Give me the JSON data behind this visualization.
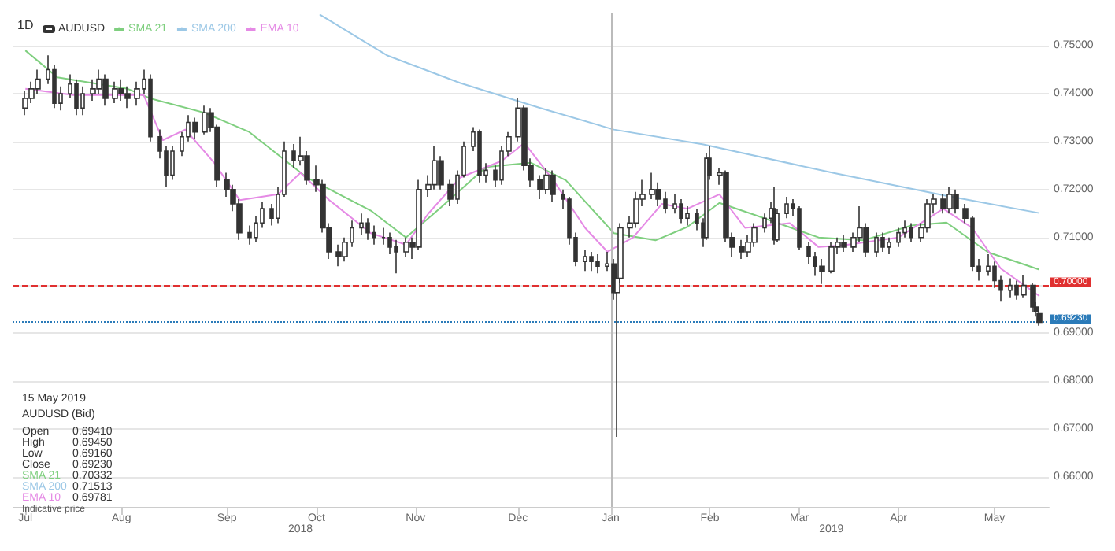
{
  "chart_data": {
    "type": "candlestick",
    "legend": "top left",
    "grid": "y",
    "ylim": [
      0.6538,
      0.7569
    ],
    "yticks": [
      {
        "value": 0.66,
        "label": "0.66000"
      },
      {
        "value": 0.67,
        "label": "0.67000"
      },
      {
        "value": 0.68,
        "label": "0.68000"
      },
      {
        "value": 0.69,
        "label": "0.69000"
      },
      {
        "value": 0.7,
        "label": null
      },
      {
        "value": 0.71,
        "label": "0.71000"
      },
      {
        "value": 0.72,
        "label": "0.72000"
      },
      {
        "value": 0.73,
        "label": "0.73000"
      },
      {
        "value": 0.74,
        "label": "0.74000"
      },
      {
        "value": 0.75,
        "label": "0.75000"
      }
    ],
    "xlim": [
      "2018-06-28",
      "2019-05-18"
    ],
    "xticks": [
      {
        "value": "2018-07-02",
        "label": "Jul"
      },
      {
        "value": "2018-08-01",
        "label": "Aug"
      },
      {
        "value": "2018-09-03",
        "label": "Sep"
      },
      {
        "value": "2018-10-01",
        "label": "Oct"
      },
      {
        "value": "2018-11-01",
        "label": "Nov"
      },
      {
        "value": "2018-12-03",
        "label": "Dec"
      },
      {
        "value": "2019-01-01",
        "label": "Jan"
      },
      {
        "value": "2019-02-01",
        "label": "Feb"
      },
      {
        "value": "2019-03-01",
        "label": "Mar"
      },
      {
        "value": "2019-04-01",
        "label": "Apr"
      },
      {
        "value": "2019-05-01",
        "label": "May"
      }
    ],
    "x2lim": [
      "2018-06-28",
      "2019-05-18"
    ],
    "x2ticks": [
      {
        "value": "2018-09-26",
        "label": "2018"
      },
      {
        "value": "2019-03-11",
        "label": "2019"
      }
    ],
    "ref_lines": [
      {
        "axis": "y",
        "value": 0.7,
        "label": "0.70000",
        "color": "#e03030",
        "line_style": "dashed"
      },
      {
        "axis": "y",
        "value": 0.6923,
        "label": "0.69230",
        "color": "#2b7bb9",
        "line_style": "dotted"
      },
      {
        "axis": "x",
        "value": "2019-01-01",
        "label": null,
        "color": "#bbbbbb",
        "line_style": "solid"
      }
    ],
    "annotations": [
      "1D",
      "15 May 2019",
      "AUDUSD (Bid)",
      "Open",
      "0.69410",
      "High",
      "0.69450",
      "Low",
      "0.69160",
      "Close",
      "0.69230",
      "SMA 21",
      "0.70332",
      "SMA 200",
      "0.71513",
      "EMA 10",
      "0.69781",
      "Indicative price"
    ],
    "series": [
      {
        "type": "candlestick",
        "name": "AUDUSD",
        "color": "#333333",
        "x": [
          "2018-07-02",
          "2018-07-04",
          "2018-07-06",
          "2018-07-09",
          "2018-07-11",
          "2018-07-13",
          "2018-07-16",
          "2018-07-18",
          "2018-07-20",
          "2018-07-23",
          "2018-07-25",
          "2018-07-27",
          "2018-07-30",
          "2018-08-01",
          "2018-08-03",
          "2018-08-06",
          "2018-08-08",
          "2018-08-10",
          "2018-08-13",
          "2018-08-15",
          "2018-08-17",
          "2018-08-20",
          "2018-08-22",
          "2018-08-24",
          "2018-08-27",
          "2018-08-29",
          "2018-08-31",
          "2018-09-03",
          "2018-09-05",
          "2018-09-07",
          "2018-09-10",
          "2018-09-12",
          "2018-09-14",
          "2018-09-17",
          "2018-09-19",
          "2018-09-21",
          "2018-09-24",
          "2018-09-26",
          "2018-09-28",
          "2018-10-01",
          "2018-10-03",
          "2018-10-05",
          "2018-10-08",
          "2018-10-10",
          "2018-10-12",
          "2018-10-15",
          "2018-10-17",
          "2018-10-19",
          "2018-10-22",
          "2018-10-24",
          "2018-10-26",
          "2018-10-29",
          "2018-10-31",
          "2018-11-02",
          "2018-11-05",
          "2018-11-07",
          "2018-11-09",
          "2018-11-12",
          "2018-11-14",
          "2018-11-16",
          "2018-11-19",
          "2018-11-21",
          "2018-11-23",
          "2018-11-26",
          "2018-11-28",
          "2018-11-30",
          "2018-12-03",
          "2018-12-05",
          "2018-12-07",
          "2018-12-10",
          "2018-12-12",
          "2018-12-14",
          "2018-12-17",
          "2018-12-19",
          "2018-12-21",
          "2018-12-24",
          "2018-12-26",
          "2018-12-28",
          "2018-12-31",
          "2019-01-02",
          "2019-01-03",
          "2019-01-04",
          "2019-01-07",
          "2019-01-09",
          "2019-01-11",
          "2019-01-14",
          "2019-01-16",
          "2019-01-18",
          "2019-01-21",
          "2019-01-23",
          "2019-01-25",
          "2019-01-28",
          "2019-01-30",
          "2019-01-31",
          "2019-02-01",
          "2019-02-04",
          "2019-02-06",
          "2019-02-08",
          "2019-02-11",
          "2019-02-13",
          "2019-02-15",
          "2019-02-18",
          "2019-02-20",
          "2019-02-21",
          "2019-02-22",
          "2019-02-25",
          "2019-02-27",
          "2019-03-01",
          "2019-03-04",
          "2019-03-06",
          "2019-03-08",
          "2019-03-11",
          "2019-03-13",
          "2019-03-15",
          "2019-03-18",
          "2019-03-20",
          "2019-03-22",
          "2019-03-25",
          "2019-03-27",
          "2019-03-29",
          "2019-04-01",
          "2019-04-03",
          "2019-04-05",
          "2019-04-08",
          "2019-04-10",
          "2019-04-12",
          "2019-04-15",
          "2019-04-17",
          "2019-04-19",
          "2019-04-22",
          "2019-04-24",
          "2019-04-26",
          "2019-04-29",
          "2019-05-01",
          "2019-05-03",
          "2019-05-06",
          "2019-05-08",
          "2019-05-10",
          "2019-05-13",
          "2019-05-14",
          "2019-05-15"
        ],
        "ohlc": [
          [
            0.737,
            0.7405,
            0.7355,
            0.739
          ],
          [
            0.739,
            0.7425,
            0.738,
            0.741
          ],
          [
            0.741,
            0.745,
            0.74,
            0.743
          ],
          [
            0.743,
            0.748,
            0.742,
            0.745
          ],
          [
            0.745,
            0.746,
            0.737,
            0.738
          ],
          [
            0.738,
            0.7415,
            0.7365,
            0.74
          ],
          [
            0.74,
            0.744,
            0.739,
            0.742
          ],
          [
            0.742,
            0.743,
            0.7355,
            0.737
          ],
          [
            0.737,
            0.7415,
            0.7355,
            0.74
          ],
          [
            0.74,
            0.743,
            0.7385,
            0.741
          ],
          [
            0.741,
            0.745,
            0.74,
            0.743
          ],
          [
            0.743,
            0.744,
            0.7375,
            0.739
          ],
          [
            0.739,
            0.7425,
            0.738,
            0.741
          ],
          [
            0.741,
            0.743,
            0.7385,
            0.74
          ],
          [
            0.74,
            0.7415,
            0.737,
            0.739
          ],
          [
            0.739,
            0.7425,
            0.7375,
            0.741
          ],
          [
            0.741,
            0.745,
            0.74,
            0.743
          ],
          [
            0.743,
            0.744,
            0.73,
            0.731
          ],
          [
            0.731,
            0.7325,
            0.7265,
            0.728
          ],
          [
            0.728,
            0.729,
            0.7205,
            0.723
          ],
          [
            0.723,
            0.729,
            0.722,
            0.728
          ],
          [
            0.728,
            0.732,
            0.727,
            0.731
          ],
          [
            0.731,
            0.7355,
            0.73,
            0.734
          ],
          [
            0.734,
            0.735,
            0.7305,
            0.732
          ],
          [
            0.732,
            0.7375,
            0.7315,
            0.736
          ],
          [
            0.736,
            0.737,
            0.732,
            0.733
          ],
          [
            0.733,
            0.7335,
            0.7205,
            0.722
          ],
          [
            0.722,
            0.7235,
            0.7185,
            0.72
          ],
          [
            0.72,
            0.721,
            0.7155,
            0.717
          ],
          [
            0.717,
            0.718,
            0.7095,
            0.711
          ],
          [
            0.711,
            0.7125,
            0.7085,
            0.71
          ],
          [
            0.71,
            0.7145,
            0.709,
            0.713
          ],
          [
            0.713,
            0.7175,
            0.712,
            0.716
          ],
          [
            0.716,
            0.717,
            0.7125,
            0.714
          ],
          [
            0.714,
            0.7205,
            0.713,
            0.719
          ],
          [
            0.719,
            0.73,
            0.7185,
            0.728
          ],
          [
            0.728,
            0.7295,
            0.7245,
            0.726
          ],
          [
            0.726,
            0.731,
            0.725,
            0.727
          ],
          [
            0.727,
            0.728,
            0.721,
            0.722
          ],
          [
            0.722,
            0.725,
            0.7195,
            0.721
          ],
          [
            0.721,
            0.722,
            0.711,
            0.712
          ],
          [
            0.712,
            0.713,
            0.7055,
            0.707
          ],
          [
            0.707,
            0.7085,
            0.704,
            0.706
          ],
          [
            0.706,
            0.71,
            0.705,
            0.709
          ],
          [
            0.709,
            0.7135,
            0.708,
            0.712
          ],
          [
            0.712,
            0.715,
            0.7105,
            0.713
          ],
          [
            0.713,
            0.714,
            0.7095,
            0.711
          ],
          [
            0.711,
            0.7125,
            0.7085,
            0.71
          ],
          [
            0.71,
            0.712,
            0.7085,
            0.71
          ],
          [
            0.71,
            0.711,
            0.7065,
            0.708
          ],
          [
            0.708,
            0.7095,
            0.7025,
            0.707
          ],
          [
            0.707,
            0.71,
            0.706,
            0.709
          ],
          [
            0.709,
            0.71,
            0.7055,
            0.708
          ],
          [
            0.708,
            0.722,
            0.7075,
            0.72
          ],
          [
            0.72,
            0.723,
            0.7185,
            0.721
          ],
          [
            0.721,
            0.729,
            0.72,
            0.726
          ],
          [
            0.726,
            0.727,
            0.72,
            0.721
          ],
          [
            0.721,
            0.722,
            0.7165,
            0.718
          ],
          [
            0.718,
            0.724,
            0.717,
            0.723
          ],
          [
            0.723,
            0.73,
            0.7225,
            0.729
          ],
          [
            0.729,
            0.733,
            0.728,
            0.732
          ],
          [
            0.732,
            0.7325,
            0.7215,
            0.723
          ],
          [
            0.723,
            0.7255,
            0.7215,
            0.724
          ],
          [
            0.724,
            0.725,
            0.7205,
            0.722
          ],
          [
            0.722,
            0.729,
            0.721,
            0.728
          ],
          [
            0.728,
            0.732,
            0.727,
            0.731
          ],
          [
            0.731,
            0.739,
            0.73,
            0.737
          ],
          [
            0.737,
            0.7375,
            0.724,
            0.725
          ],
          [
            0.725,
            0.7265,
            0.7205,
            0.722
          ],
          [
            0.722,
            0.723,
            0.718,
            0.72
          ],
          [
            0.72,
            0.7245,
            0.719,
            0.723
          ],
          [
            0.723,
            0.724,
            0.7175,
            0.719
          ],
          [
            0.719,
            0.72,
            0.716,
            0.718
          ],
          [
            0.718,
            0.7185,
            0.7085,
            0.71
          ],
          [
            0.71,
            0.711,
            0.704,
            0.705
          ],
          [
            0.705,
            0.7075,
            0.703,
            0.706
          ],
          [
            0.706,
            0.707,
            0.703,
            0.705
          ],
          [
            0.705,
            0.7065,
            0.7025,
            0.704
          ],
          [
            0.704,
            0.707,
            0.703,
            0.7045
          ],
          [
            0.7045,
            0.7055,
            0.697,
            0.6985
          ],
          [
            0.6985,
            0.7025,
            0.6684,
            0.7015
          ],
          [
            0.7015,
            0.713,
            0.7005,
            0.712
          ],
          [
            0.712,
            0.7145,
            0.71,
            0.713
          ],
          [
            0.713,
            0.7195,
            0.712,
            0.718
          ],
          [
            0.718,
            0.722,
            0.7165,
            0.719
          ],
          [
            0.719,
            0.7235,
            0.718,
            0.72
          ],
          [
            0.72,
            0.7215,
            0.7165,
            0.718
          ],
          [
            0.718,
            0.7195,
            0.715,
            0.716
          ],
          [
            0.716,
            0.719,
            0.715,
            0.717
          ],
          [
            0.717,
            0.718,
            0.713,
            0.714
          ],
          [
            0.714,
            0.7165,
            0.7125,
            0.715
          ],
          [
            0.715,
            0.716,
            0.7115,
            0.713
          ],
          [
            0.713,
            0.714,
            0.708,
            0.71
          ],
          [
            0.71,
            0.7275,
            0.7095,
            0.7265
          ],
          [
            0.7265,
            0.729,
            0.722,
            0.723
          ],
          [
            0.723,
            0.7245,
            0.721,
            0.7235
          ],
          [
            0.7235,
            0.724,
            0.709,
            0.71
          ],
          [
            0.71,
            0.711,
            0.706,
            0.708
          ],
          [
            0.708,
            0.7095,
            0.7055,
            0.707
          ],
          [
            0.707,
            0.7105,
            0.706,
            0.709
          ],
          [
            0.709,
            0.713,
            0.708,
            0.712
          ],
          [
            0.712,
            0.715,
            0.711,
            0.714
          ],
          [
            0.714,
            0.7175,
            0.713,
            0.716
          ],
          [
            0.716,
            0.7205,
            0.7085,
            0.7095
          ],
          [
            0.7095,
            0.716,
            0.709,
            0.715
          ],
          [
            0.715,
            0.7185,
            0.714,
            0.717
          ],
          [
            0.717,
            0.718,
            0.7145,
            0.716
          ],
          [
            0.716,
            0.7165,
            0.7075,
            0.708
          ],
          [
            0.708,
            0.709,
            0.7045,
            0.706
          ],
          [
            0.706,
            0.707,
            0.702,
            0.704
          ],
          [
            0.704,
            0.7055,
            0.7003,
            0.703
          ],
          [
            0.703,
            0.709,
            0.7025,
            0.708
          ],
          [
            0.708,
            0.71,
            0.7065,
            0.709
          ],
          [
            0.709,
            0.7105,
            0.707,
            0.708
          ],
          [
            0.708,
            0.711,
            0.707,
            0.71
          ],
          [
            0.71,
            0.7165,
            0.709,
            0.712
          ],
          [
            0.712,
            0.713,
            0.706,
            0.707
          ],
          [
            0.707,
            0.711,
            0.706,
            0.71
          ],
          [
            0.71,
            0.711,
            0.707,
            0.708
          ],
          [
            0.708,
            0.71,
            0.7065,
            0.709
          ],
          [
            0.709,
            0.712,
            0.708,
            0.711
          ],
          [
            0.711,
            0.7135,
            0.71,
            0.712
          ],
          [
            0.712,
            0.713,
            0.709,
            0.71
          ],
          [
            0.71,
            0.713,
            0.709,
            0.712
          ],
          [
            0.712,
            0.718,
            0.711,
            0.717
          ],
          [
            0.717,
            0.719,
            0.715,
            0.718
          ],
          [
            0.718,
            0.719,
            0.715,
            0.716
          ],
          [
            0.716,
            0.7205,
            0.715,
            0.719
          ],
          [
            0.719,
            0.72,
            0.715,
            0.716
          ],
          [
            0.716,
            0.717,
            0.713,
            0.714
          ],
          [
            0.714,
            0.7145,
            0.703,
            0.704
          ],
          [
            0.704,
            0.7055,
            0.701,
            0.703
          ],
          [
            0.703,
            0.7065,
            0.702,
            0.704
          ],
          [
            0.704,
            0.705,
            0.6995,
            0.701
          ],
          [
            0.701,
            0.702,
            0.6966,
            0.699
          ],
          [
            0.699,
            0.7015,
            0.6975,
            0.7
          ],
          [
            0.7,
            0.701,
            0.697,
            0.698
          ],
          [
            0.698,
            0.7022,
            0.6975,
            0.7
          ],
          [
            0.7,
            0.7005,
            0.6945,
            0.6955
          ],
          [
            0.6955,
            0.6965,
            0.6935,
            0.6945
          ],
          [
            0.6941,
            0.6945,
            0.6916,
            0.6923
          ]
        ]
      },
      {
        "type": "line",
        "name": "SMA 21",
        "color": "#7fcf7f",
        "x": [
          "2018-07-02",
          "2018-07-12",
          "2018-08-03",
          "2018-08-10",
          "2018-08-27",
          "2018-09-10",
          "2018-09-28",
          "2018-10-18",
          "2018-10-29",
          "2018-11-09",
          "2018-11-23",
          "2018-12-07",
          "2018-12-18",
          "2019-01-02",
          "2019-01-15",
          "2019-01-25",
          "2019-02-04",
          "2019-02-15",
          "2019-03-07",
          "2019-03-21",
          "2019-04-05",
          "2019-04-16",
          "2019-04-29",
          "2019-05-15"
        ],
        "values": [
          0.749,
          0.7434,
          0.741,
          0.739,
          0.736,
          0.732,
          0.7225,
          0.7156,
          0.71,
          0.7163,
          0.7247,
          0.7256,
          0.7219,
          0.7109,
          0.7094,
          0.7122,
          0.7172,
          0.7147,
          0.71,
          0.7094,
          0.7125,
          0.7131,
          0.7069,
          0.7033
        ]
      },
      {
        "type": "line",
        "name": "SMA 200",
        "color": "#9cc8e6",
        "x": [
          "2018-10-02",
          "2018-10-23",
          "2018-11-15",
          "2018-12-10",
          "2019-01-02",
          "2019-01-30",
          "2019-03-12",
          "2019-04-15",
          "2019-05-15"
        ],
        "values": [
          0.7565,
          0.748,
          0.7422,
          0.737,
          0.7325,
          0.7294,
          0.7234,
          0.7188,
          0.7151
        ]
      },
      {
        "type": "line",
        "name": "EMA 10",
        "color": "#e58ae5",
        "x": [
          "2018-07-02",
          "2018-07-17",
          "2018-08-08",
          "2018-08-14",
          "2018-08-21",
          "2018-08-30",
          "2018-09-07",
          "2018-09-19",
          "2018-09-26",
          "2018-10-05",
          "2018-10-18",
          "2018-10-29",
          "2018-11-05",
          "2018-11-15",
          "2018-11-28",
          "2018-12-05",
          "2018-12-14",
          "2018-12-24",
          "2018-12-31",
          "2019-01-08",
          "2019-01-17",
          "2019-01-25",
          "2019-02-04",
          "2019-02-12",
          "2019-02-26",
          "2019-03-07",
          "2019-03-15",
          "2019-04-01",
          "2019-04-15",
          "2019-04-24",
          "2019-05-03",
          "2019-05-15"
        ],
        "values": [
          0.741,
          0.7397,
          0.7397,
          0.7303,
          0.7325,
          0.7256,
          0.7178,
          0.719,
          0.7235,
          0.7178,
          0.7109,
          0.7085,
          0.715,
          0.7225,
          0.726,
          0.7297,
          0.722,
          0.712,
          0.707,
          0.71,
          0.717,
          0.716,
          0.719,
          0.712,
          0.713,
          0.708,
          0.7084,
          0.71,
          0.716,
          0.712,
          0.7035,
          0.6978
        ]
      }
    ]
  }
}
